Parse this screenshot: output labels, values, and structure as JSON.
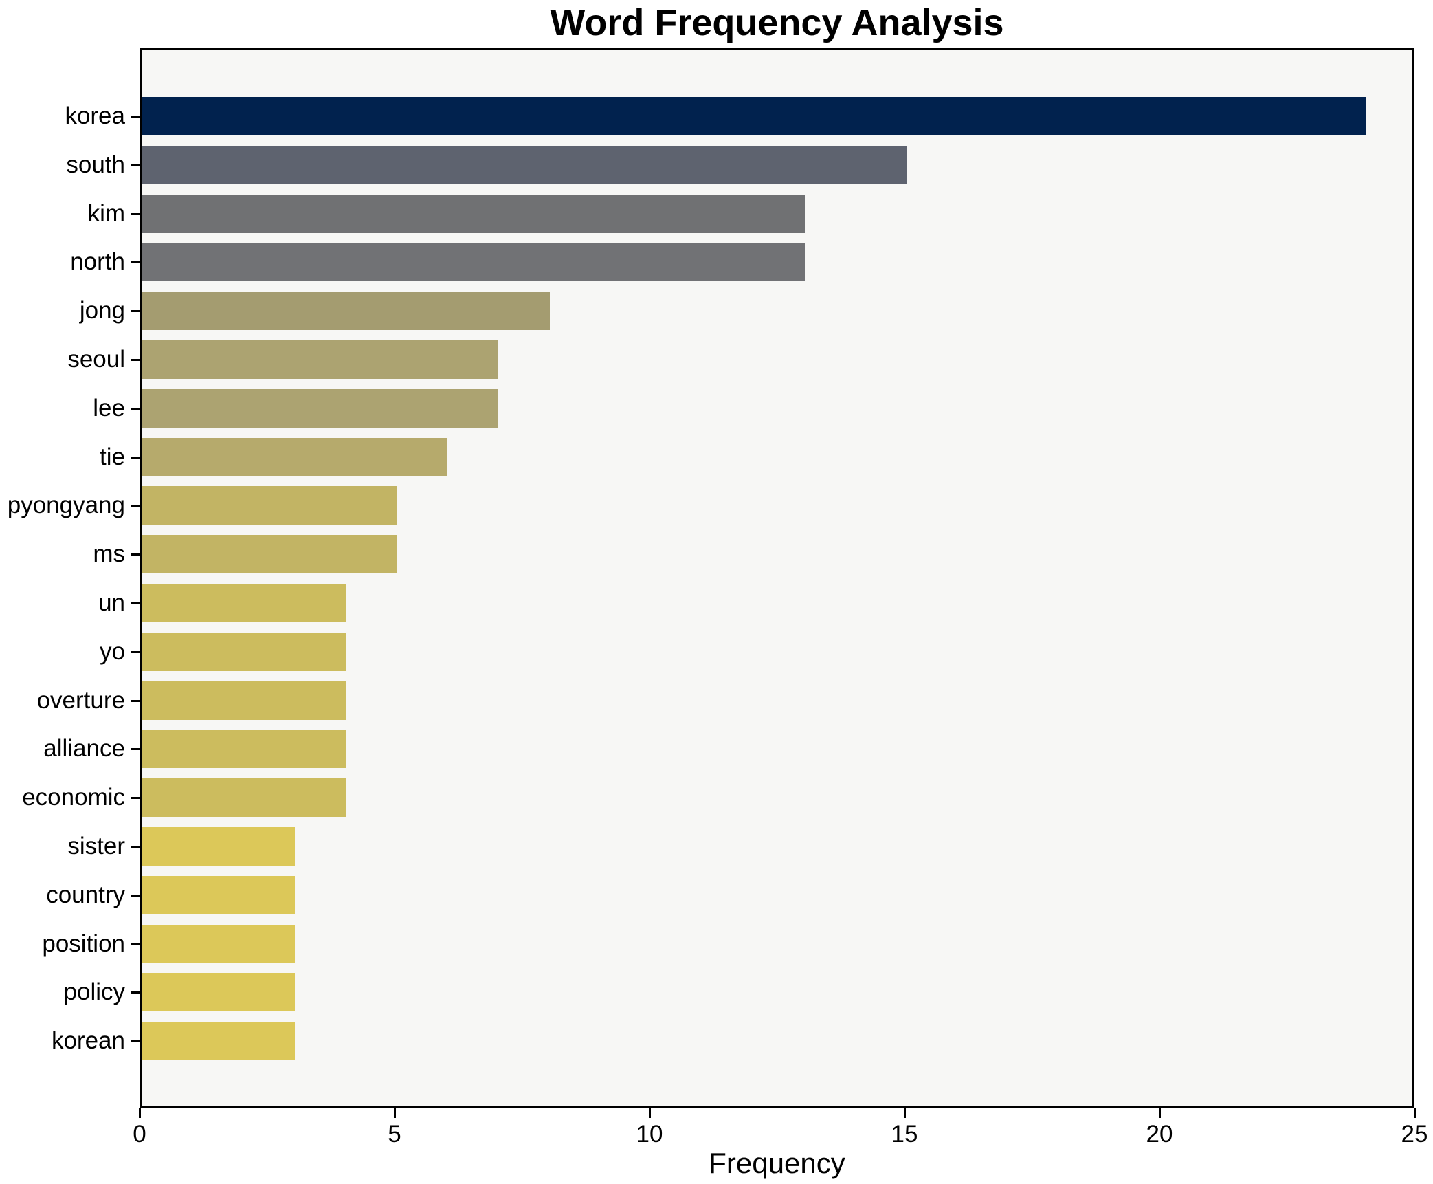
{
  "chart_data": {
    "type": "bar",
    "orientation": "horizontal",
    "title": "Word Frequency Analysis",
    "xlabel": "Frequency",
    "ylabel": "",
    "xlim": [
      0,
      25
    ],
    "xticks": [
      0,
      5,
      10,
      15,
      20,
      25
    ],
    "grid": false,
    "legend": false,
    "categories": [
      "korea",
      "south",
      "kim",
      "north",
      "jong",
      "seoul",
      "lee",
      "tie",
      "pyongyang",
      "ms",
      "un",
      "yo",
      "overture",
      "alliance",
      "economic",
      "sister",
      "country",
      "position",
      "policy",
      "korean"
    ],
    "values": [
      24,
      15,
      13,
      13,
      8,
      7,
      7,
      6,
      5,
      5,
      4,
      4,
      4,
      4,
      4,
      3,
      3,
      3,
      3,
      3
    ],
    "bar_colors": [
      "#01224e",
      "#5e636f",
      "#707173",
      "#717275",
      "#a49c70",
      "#aca371",
      "#aca371",
      "#b6aa6c",
      "#c2b464",
      "#c2b464",
      "#ccbc5e",
      "#ccbc5e",
      "#ccbc5e",
      "#ccbc5e",
      "#ccbc5e",
      "#dcc859",
      "#dcc859",
      "#dcc859",
      "#dcc859",
      "#dcc859"
    ],
    "colors": {
      "figure_background": "#ffffff",
      "plot_background": "#f7f7f5",
      "axis": "#000000",
      "text": "#000000",
      "colormap": "cividis-reversed"
    }
  }
}
